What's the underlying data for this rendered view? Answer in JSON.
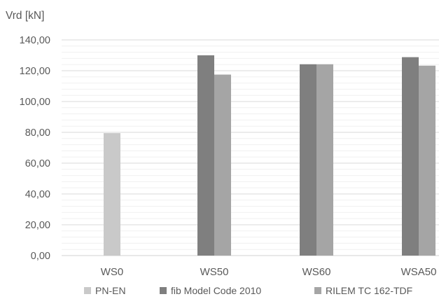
{
  "chart_data": {
    "type": "bar",
    "title": "",
    "xlabel": "",
    "ylabel": "Vrd [kN]",
    "ylim": [
      0,
      140
    ],
    "ytick_step": 20,
    "minor_grid_step": 4,
    "grid": true,
    "legend_position": "bottom",
    "categories": [
      "WS0",
      "WS50",
      "WS60",
      "WSA50"
    ],
    "ytick_labels": [
      "0,00",
      "20,00",
      "40,00",
      "60,00",
      "80,00",
      "100,00",
      "120,00",
      "140,00"
    ],
    "series": [
      {
        "name": "PN-EN",
        "color": "#C9C9C9",
        "values": [
          79.5,
          null,
          null,
          null
        ]
      },
      {
        "name": "fib Model Code 2010",
        "color": "#7F7F7F",
        "values": [
          null,
          130.0,
          124.2,
          128.8
        ]
      },
      {
        "name": "RILEM TC 162-TDF",
        "color": "#A5A5A5",
        "values": [
          null,
          117.5,
          124.2,
          123.3
        ]
      }
    ]
  }
}
